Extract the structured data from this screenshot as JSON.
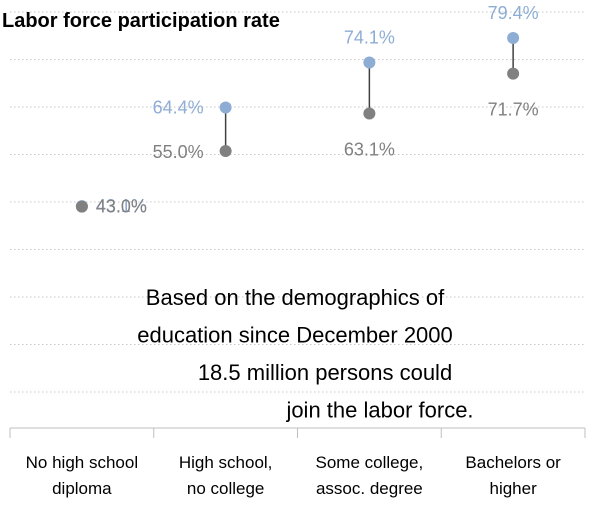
{
  "chart_data": {
    "type": "dumbbell",
    "title": "Labor force participation rate",
    "categories": [
      [
        "No high school",
        "diploma"
      ],
      [
        "High school,",
        "no college"
      ],
      [
        "Some college,",
        "assoc. degree"
      ],
      [
        "Bachelors or",
        "higher"
      ]
    ],
    "series": [
      {
        "color": "#8eadd4",
        "values": [
          43.1,
          64.4,
          74.1,
          79.4
        ],
        "labels": [
          "43.1%",
          "64.4%",
          "74.1%",
          "79.4%"
        ]
      },
      {
        "color": "#808080",
        "values": [
          43.0,
          55.0,
          63.1,
          71.7
        ],
        "labels": [
          "43.0%",
          "55.0%",
          "63.1%",
          "71.7%"
        ]
      }
    ],
    "ylim": [
      25,
      85
    ],
    "grid": true,
    "annotation": [
      "Based on the demographics of",
      "education since December 2000",
      "18.5 million persons could",
      "join the labor force."
    ]
  }
}
